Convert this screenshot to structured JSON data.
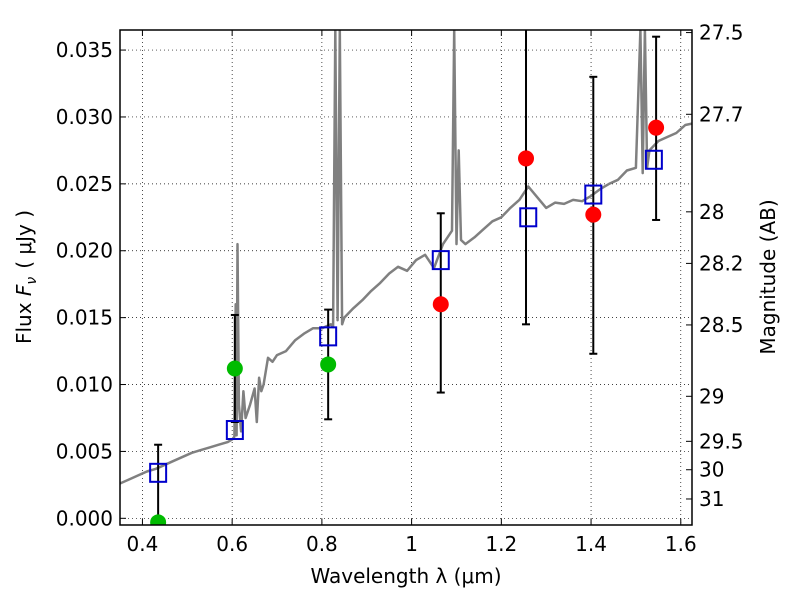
{
  "chart_data": {
    "type": "scatter",
    "xlabel": "Wavelength  λ (μm)",
    "ylabel_text": "Flux",
    "ylabel_symbol": "F",
    "ylabel_subscript": "ν",
    "ylabel_unit": "( μJy )",
    "y2label": "Magnitude (AB)",
    "xlim": [
      0.35,
      1.625
    ],
    "ylim": [
      -0.0005,
      0.0365
    ],
    "grid": true,
    "x_ticks": [
      0.4,
      0.6,
      0.8,
      1.0,
      1.2,
      1.4,
      1.6
    ],
    "x_tick_labels": [
      "0.4",
      "0.6",
      "0.8",
      "1",
      "1.2",
      "1.4",
      "1.6"
    ],
    "y_ticks": [
      0.0,
      0.005,
      0.01,
      0.015,
      0.02,
      0.025,
      0.03,
      0.035
    ],
    "y_tick_labels": [
      "0.000",
      "0.005",
      "0.010",
      "0.015",
      "0.020",
      "0.025",
      "0.030",
      "0.035"
    ],
    "mag_ticks": [
      {
        "value": 27.5,
        "label": "27.5"
      },
      {
        "value": 27.7,
        "label": "27.7"
      },
      {
        "value": 28.0,
        "label": "28"
      },
      {
        "value": 28.2,
        "label": "28.2"
      },
      {
        "value": 28.5,
        "label": "28.5"
      },
      {
        "value": 29.0,
        "label": "29"
      },
      {
        "value": 29.5,
        "label": "29.5"
      },
      {
        "value": 30.0,
        "label": "30"
      },
      {
        "value": 31.0,
        "label": "31"
      }
    ],
    "series": [
      {
        "kind": "model-spectrum",
        "color": "#808080",
        "x": [
          0.35,
          0.37,
          0.39,
          0.41,
          0.43,
          0.45,
          0.47,
          0.49,
          0.51,
          0.53,
          0.55,
          0.57,
          0.59,
          0.6,
          0.605,
          0.608,
          0.61,
          0.612,
          0.615,
          0.62,
          0.625,
          0.63,
          0.64,
          0.65,
          0.655,
          0.66,
          0.665,
          0.67,
          0.68,
          0.69,
          0.7,
          0.72,
          0.74,
          0.76,
          0.78,
          0.8,
          0.82,
          0.825,
          0.83,
          0.835,
          0.84,
          0.845,
          0.85,
          0.87,
          0.89,
          0.91,
          0.93,
          0.95,
          0.97,
          0.99,
          1.01,
          1.03,
          1.05,
          1.07,
          1.08,
          1.09,
          1.095,
          1.1,
          1.105,
          1.11,
          1.12,
          1.14,
          1.16,
          1.18,
          1.2,
          1.22,
          1.24,
          1.26,
          1.28,
          1.3,
          1.32,
          1.34,
          1.36,
          1.38,
          1.4,
          1.42,
          1.44,
          1.46,
          1.48,
          1.5,
          1.51,
          1.515,
          1.52,
          1.525,
          1.53,
          1.55,
          1.57,
          1.59,
          1.61,
          1.625
        ],
        "y": [
          0.0026,
          0.0029,
          0.0032,
          0.0035,
          0.0037,
          0.004,
          0.0043,
          0.0046,
          0.0049,
          0.0051,
          0.0053,
          0.0055,
          0.0057,
          0.0059,
          0.0061,
          0.016,
          0.0062,
          0.0205,
          0.0085,
          0.0065,
          0.0095,
          0.0075,
          0.0085,
          0.0097,
          0.0072,
          0.0105,
          0.0095,
          0.01,
          0.012,
          0.0117,
          0.0122,
          0.0125,
          0.0133,
          0.0138,
          0.0142,
          0.0142,
          0.0145,
          0.0143,
          0.0365,
          0.0148,
          0.0365,
          0.0145,
          0.015,
          0.0157,
          0.0163,
          0.017,
          0.0176,
          0.0183,
          0.0188,
          0.0185,
          0.0193,
          0.0197,
          0.0187,
          0.0205,
          0.021,
          0.0215,
          0.0365,
          0.0205,
          0.0275,
          0.0208,
          0.0205,
          0.021,
          0.0216,
          0.0222,
          0.0225,
          0.0232,
          0.0238,
          0.0248,
          0.024,
          0.0232,
          0.0236,
          0.0235,
          0.0238,
          0.0237,
          0.0241,
          0.0246,
          0.025,
          0.0253,
          0.026,
          0.0262,
          0.0365,
          0.0258,
          0.0365,
          0.0262,
          0.0275,
          0.0282,
          0.0285,
          0.0288,
          0.0294,
          0.0295
        ]
      },
      {
        "kind": "model-photometry",
        "marker": "square",
        "color": "#0000cc",
        "x": [
          0.435,
          0.606,
          0.814,
          1.065,
          1.26,
          1.405,
          1.54
        ],
        "y": [
          0.0034,
          0.0066,
          0.0136,
          0.0193,
          0.0225,
          0.0242,
          0.0268
        ]
      },
      {
        "kind": "observed-detection",
        "marker": "circle",
        "color": "#ff0000",
        "x": [
          1.065,
          1.255,
          1.405,
          1.545
        ],
        "y": [
          0.016,
          0.0269,
          0.0227,
          0.0292
        ],
        "err_low": [
          0.0094,
          0.0145,
          0.0123,
          0.0223
        ],
        "err_high": [
          0.0228,
          0.037,
          0.033,
          0.036
        ]
      },
      {
        "kind": "observed-weak",
        "marker": "circle",
        "color": "#00bb00",
        "x": [
          0.435,
          0.606,
          0.814
        ],
        "y": [
          -0.0003,
          0.0112,
          0.0115
        ],
        "err_low": [
          -0.0005,
          0.0072,
          0.0074
        ],
        "err_high": [
          0.0055,
          0.0152,
          0.0156
        ]
      }
    ]
  }
}
